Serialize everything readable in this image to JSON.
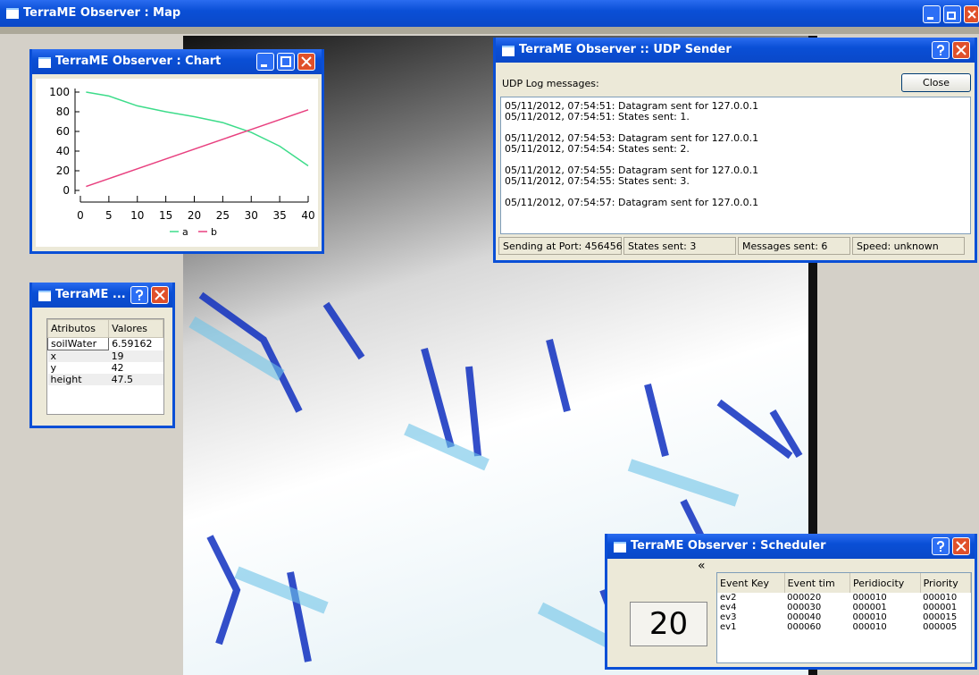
{
  "main_window": {
    "title": "TerraME Observer : Map"
  },
  "chart_window": {
    "title": "TerraME Observer : Chart",
    "chart_data": {
      "type": "line",
      "x": [
        1,
        5,
        10,
        15,
        20,
        25,
        30,
        35,
        40
      ],
      "series": [
        {
          "name": "a",
          "color": "#3ddc8a",
          "values": [
            100,
            96,
            86,
            80,
            75,
            69,
            59,
            45,
            25
          ]
        },
        {
          "name": "b",
          "color": "#e8407f",
          "values": [
            4,
            12,
            22,
            32,
            42,
            52,
            62,
            72,
            82
          ]
        }
      ],
      "xlim": [
        0,
        40
      ],
      "ylim": [
        0,
        100
      ],
      "xticks": [
        0,
        5,
        10,
        15,
        20,
        25,
        30,
        35,
        40
      ],
      "yticks": [
        0,
        20,
        40,
        60,
        80,
        100
      ]
    }
  },
  "attributes_window": {
    "title": "TerraME ...",
    "table": {
      "header": [
        "Atributos",
        "Valores"
      ],
      "rows": [
        [
          "soilWater",
          "6.59162"
        ],
        [
          "x",
          "19"
        ],
        [
          "y",
          "42"
        ],
        [
          "height",
          "47.5"
        ]
      ]
    }
  },
  "udp_window": {
    "title": "TerraME Observer :: UDP Sender",
    "label": "UDP Log messages:",
    "button": "Close",
    "log": [
      [
        "05/11/2012, 07:54:51: Datagram sent for 127.0.0.1",
        "05/11/2012, 07:54:51: States sent: 1."
      ],
      [
        "05/11/2012, 07:54:53: Datagram sent for 127.0.0.1",
        "05/11/2012, 07:54:54: States sent: 2."
      ],
      [
        "05/11/2012, 07:54:55: Datagram sent for 127.0.0.1",
        "05/11/2012, 07:54:55: States sent: 3."
      ],
      [
        "05/11/2012, 07:54:57: Datagram sent for 127.0.0.1"
      ]
    ],
    "status": [
      "Sending at Port: 456456",
      "States sent: 3",
      "Messages sent: 6",
      "Speed: unknown"
    ]
  },
  "scheduler_window": {
    "title": "TerraME Observer : Scheduler",
    "nav": "«",
    "counter": "20",
    "table": {
      "header": [
        "Event Key",
        "Event tim",
        "Peridiocity",
        "Priority"
      ],
      "rows": [
        [
          "ev2",
          "000020",
          "000010",
          "000010"
        ],
        [
          "ev4",
          "000030",
          "000001",
          "000001"
        ],
        [
          "ev3",
          "000040",
          "000010",
          "000015"
        ],
        [
          "ev1",
          "000060",
          "000010",
          "000005"
        ]
      ]
    }
  }
}
